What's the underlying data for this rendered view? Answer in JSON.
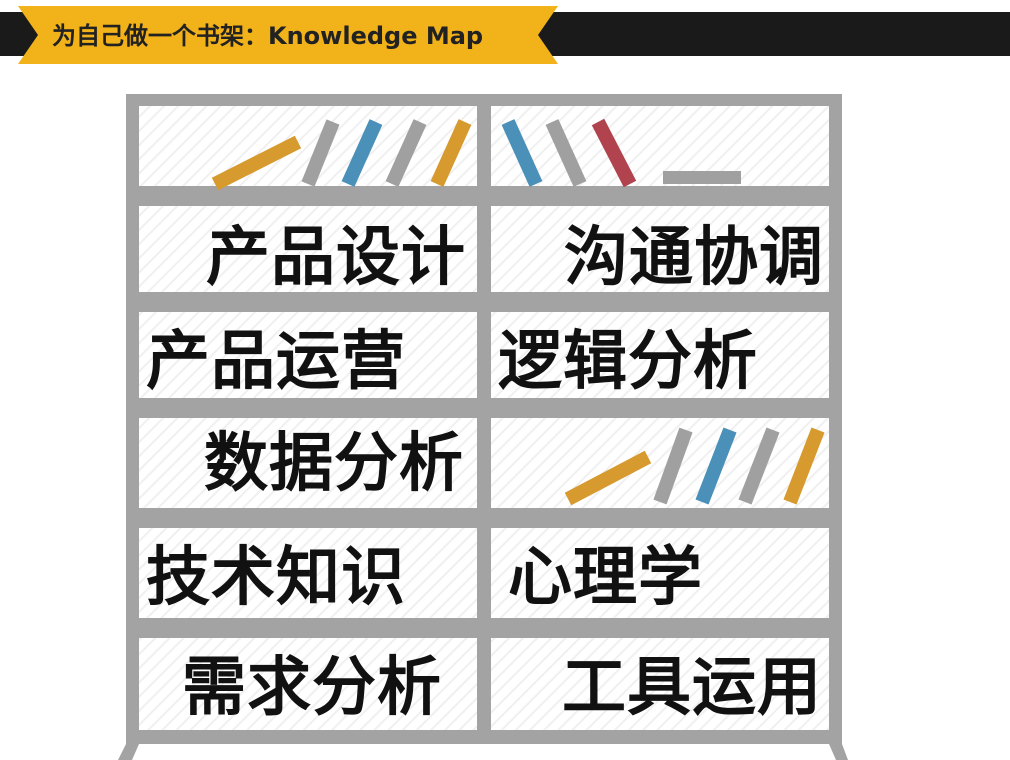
{
  "header": {
    "title": "为自己做一个书架：Knowledge Map"
  },
  "colors": {
    "header_bar": "#1a1a1a",
    "header_tag": "#f2b21a",
    "shelf_frame": "#a3a3a3",
    "book_orange": "#d69a2e",
    "book_gray": "#a0a0a0",
    "book_blue": "#4a90b8",
    "book_red": "#b0434d"
  },
  "shelf": {
    "left_column": [
      "产品设计",
      "产品运营",
      "数据分析",
      "技术知识",
      "需求分析"
    ],
    "right_column": [
      "沟通协调",
      "逻辑分析",
      "心理学",
      "工具运用"
    ]
  }
}
